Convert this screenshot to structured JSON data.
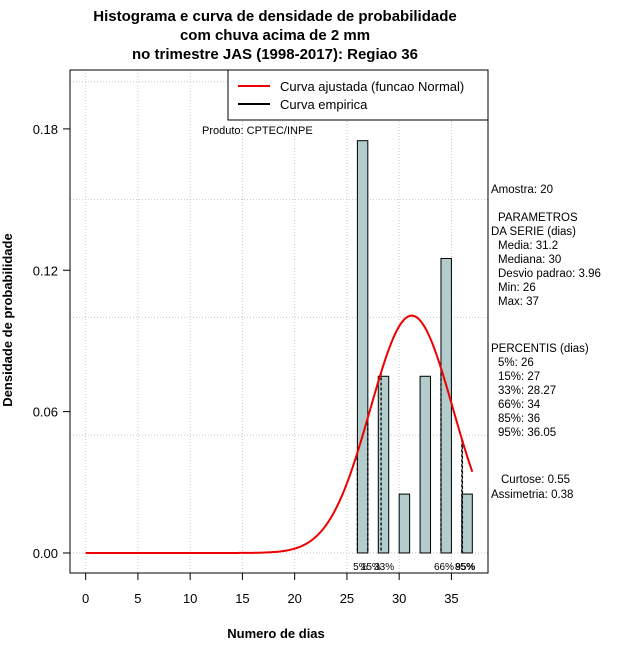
{
  "chart_data": {
    "type": "bar",
    "title_lines": [
      "Histograma e curva de densidade de probabilidade",
      "com chuva acima de 2 mm",
      "no trimestre JAS (1998-2017): Regiao 36"
    ],
    "xlabel": "Numero de dias",
    "ylabel": "Densidade de probabilidade",
    "xlim": [
      -1.5,
      38.5
    ],
    "ylim": [
      -0.0085,
      0.205
    ],
    "x_ticks": [
      0,
      5,
      10,
      15,
      20,
      25,
      30,
      35
    ],
    "y_ticks": [
      0.0,
      0.06,
      0.12,
      0.18
    ],
    "y_tick_labels": [
      "0.00",
      "0.06",
      "0.12",
      "0.18"
    ],
    "grid": true,
    "histogram": {
      "bins": [
        {
          "start": 26,
          "end": 27,
          "density": 0.175
        },
        {
          "start": 27,
          "end": 28,
          "density": 0.0
        },
        {
          "start": 28,
          "end": 29,
          "density": 0.075
        },
        {
          "start": 29,
          "end": 30,
          "density": 0.0
        },
        {
          "start": 30,
          "end": 31,
          "density": 0.025
        },
        {
          "start": 31,
          "end": 32,
          "density": 0.0
        },
        {
          "start": 32,
          "end": 33,
          "density": 0.075
        },
        {
          "start": 33,
          "end": 34,
          "density": 0.0
        },
        {
          "start": 34,
          "end": 35,
          "density": 0.125
        },
        {
          "start": 35,
          "end": 36,
          "density": 0.0
        },
        {
          "start": 36,
          "end": 37,
          "density": 0.025
        }
      ],
      "bar_color": "#b3cccc"
    },
    "fitted_curve": {
      "name": "Curva ajustada (funcao Normal)",
      "mean": 31.2,
      "sd": 3.96,
      "x_range": [
        0,
        37
      ],
      "color": "#ee0000"
    },
    "percentile_lines": [
      {
        "label": "5%",
        "value": 26
      },
      {
        "label": "15%",
        "value": 27
      },
      {
        "label": "33%",
        "value": 28.27
      },
      {
        "label": "66%",
        "value": 34
      },
      {
        "label": "85%",
        "value": 36
      },
      {
        "label": "95%",
        "value": 36.05
      }
    ],
    "legend": {
      "position": "top-right",
      "entries": [
        {
          "label": "Curva ajustada (funcao Normal)",
          "color": "#ee0000"
        },
        {
          "label": "Curva empirica",
          "color": "#000000"
        }
      ]
    },
    "annotation": "Produto: CPTEC/INPE"
  },
  "stats_panel": {
    "amostra": "Amostra: 20",
    "param_title_1": "PARAMETROS",
    "param_title_2": "DA SERIE (dias)",
    "media": "Media: 31.2",
    "mediana": "Mediana: 30",
    "desvio": "Desvio padrao: 3.96",
    "min": "Min: 26",
    "max": "Max: 37",
    "percentis_title": "PERCENTIS (dias)",
    "p5": "5%: 26",
    "p15": "15%: 27",
    "p33": "33%: 28.27",
    "p66": "66%: 34",
    "p85": "85%: 36",
    "p95": "95%: 36.05",
    "curtose": "Curtose: 0.55",
    "assimetria": "Assimetria: 0.38"
  }
}
